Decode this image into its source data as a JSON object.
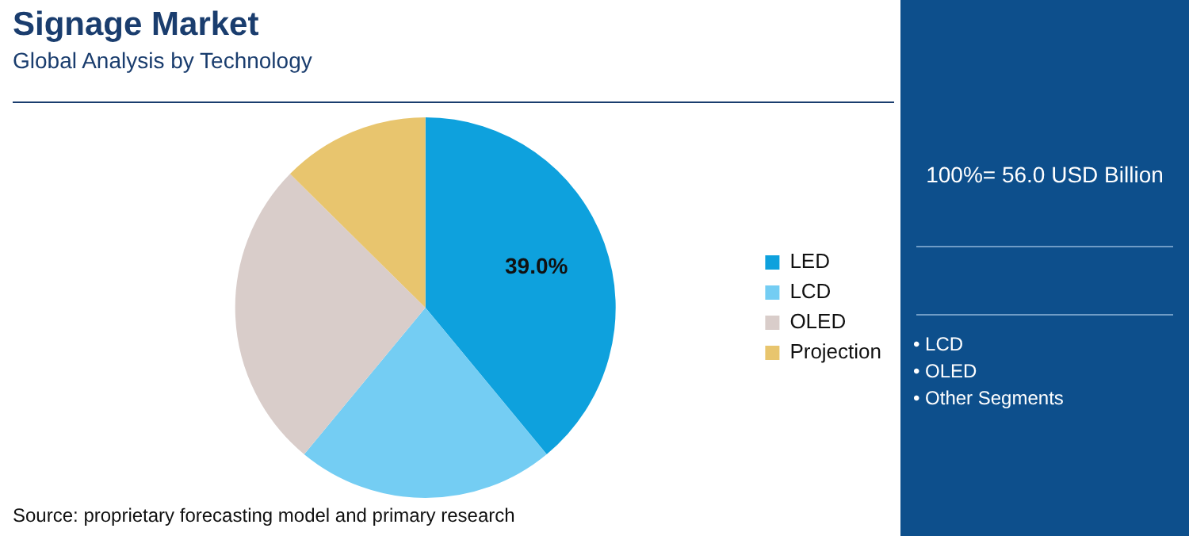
{
  "chart_data": {
    "type": "pie",
    "title": "Signage Market",
    "subtitle": "Global Analysis by Technology",
    "categories": [
      "LED",
      "LCD",
      "OLED",
      "Projection"
    ],
    "values": [
      39.0,
      22.0,
      26.4,
      12.6
    ],
    "colors": [
      "#0ea1dd",
      "#74cdf3",
      "#d9cdca",
      "#e8c56e"
    ],
    "value_labels": [
      "39.0%",
      null,
      null,
      null
    ],
    "legend": "right",
    "annotations": [
      "100%= 56.0 USD Billion",
      "• LCD",
      "• OLED",
      "• Other Segments",
      "Source: proprietary forecasting model and primary research"
    ]
  }
}
